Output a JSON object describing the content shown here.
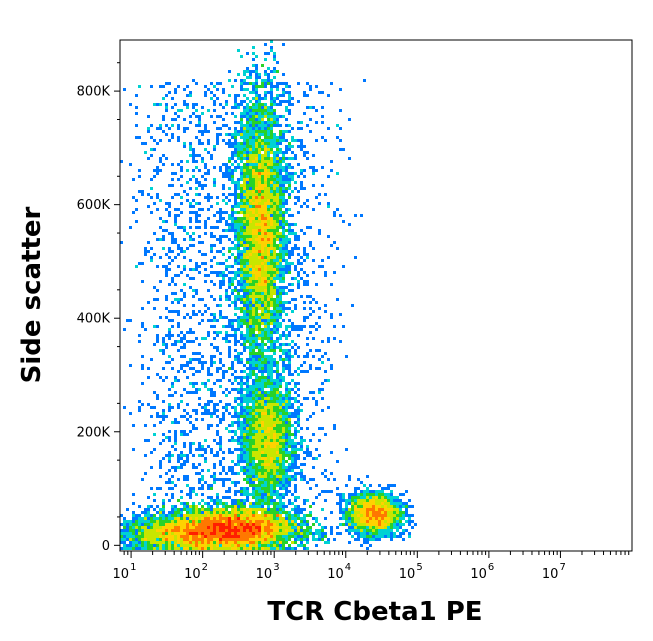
{
  "chart_data": {
    "type": "scatter",
    "subtype": "flow-cytometry-density-dot-plot",
    "xlabel": "TCR Cbeta1 PE",
    "ylabel": "Side scatter",
    "x_scale": "log",
    "xlim": [
      7,
      100000000
    ],
    "ylim": [
      -10000,
      890000
    ],
    "x_ticks": [
      {
        "base": "10",
        "exp": "1",
        "value": 10
      },
      {
        "base": "10",
        "exp": "2",
        "value": 100
      },
      {
        "base": "10",
        "exp": "3",
        "value": 1000
      },
      {
        "base": "10",
        "exp": "4",
        "value": 10000
      },
      {
        "base": "10",
        "exp": "5",
        "value": 100000
      },
      {
        "base": "10",
        "exp": "6",
        "value": 1000000
      },
      {
        "base": "10",
        "exp": "7",
        "value": 10000000
      }
    ],
    "y_ticks": [
      {
        "label": "0",
        "value": 0
      },
      {
        "label": "200K",
        "value": 200000
      },
      {
        "label": "400K",
        "value": 400000
      },
      {
        "label": "600K",
        "value": 600000
      },
      {
        "label": "800K",
        "value": 800000
      }
    ],
    "density_colormap": [
      "#0000ff",
      "#0078ff",
      "#00d2d2",
      "#28d228",
      "#c8e600",
      "#ffd200",
      "#ff7800",
      "#ff1e00"
    ],
    "populations": [
      {
        "name": "lymphocytes-low-ssc",
        "x_center": 250,
        "y_center": 30000,
        "x_spread_decades": 0.45,
        "y_spread": 18000,
        "weight": 0.3
      },
      {
        "name": "tcr-low-dim",
        "x_center": 60,
        "y_center": 20000,
        "x_spread_decades": 0.5,
        "y_spread": 15000,
        "weight": 0.1
      },
      {
        "name": "granulocyte-column",
        "x_center": 650,
        "y_center": 560000,
        "x_spread_decades": 0.16,
        "y_spread": 110000,
        "weight": 0.28
      },
      {
        "name": "monocyte-column",
        "x_center": 800,
        "y_center": 190000,
        "x_spread_decades": 0.17,
        "y_spread": 55000,
        "weight": 0.12
      },
      {
        "name": "tcr-cbeta1-positive",
        "x_center": 25000,
        "y_center": 55000,
        "x_spread_decades": 0.18,
        "y_spread": 18000,
        "weight": 0.09
      },
      {
        "name": "sparse-background",
        "x_center": 300,
        "y_center": 300000,
        "x_spread_decades": 0.9,
        "y_spread": 230000,
        "weight": 0.11
      }
    ]
  }
}
